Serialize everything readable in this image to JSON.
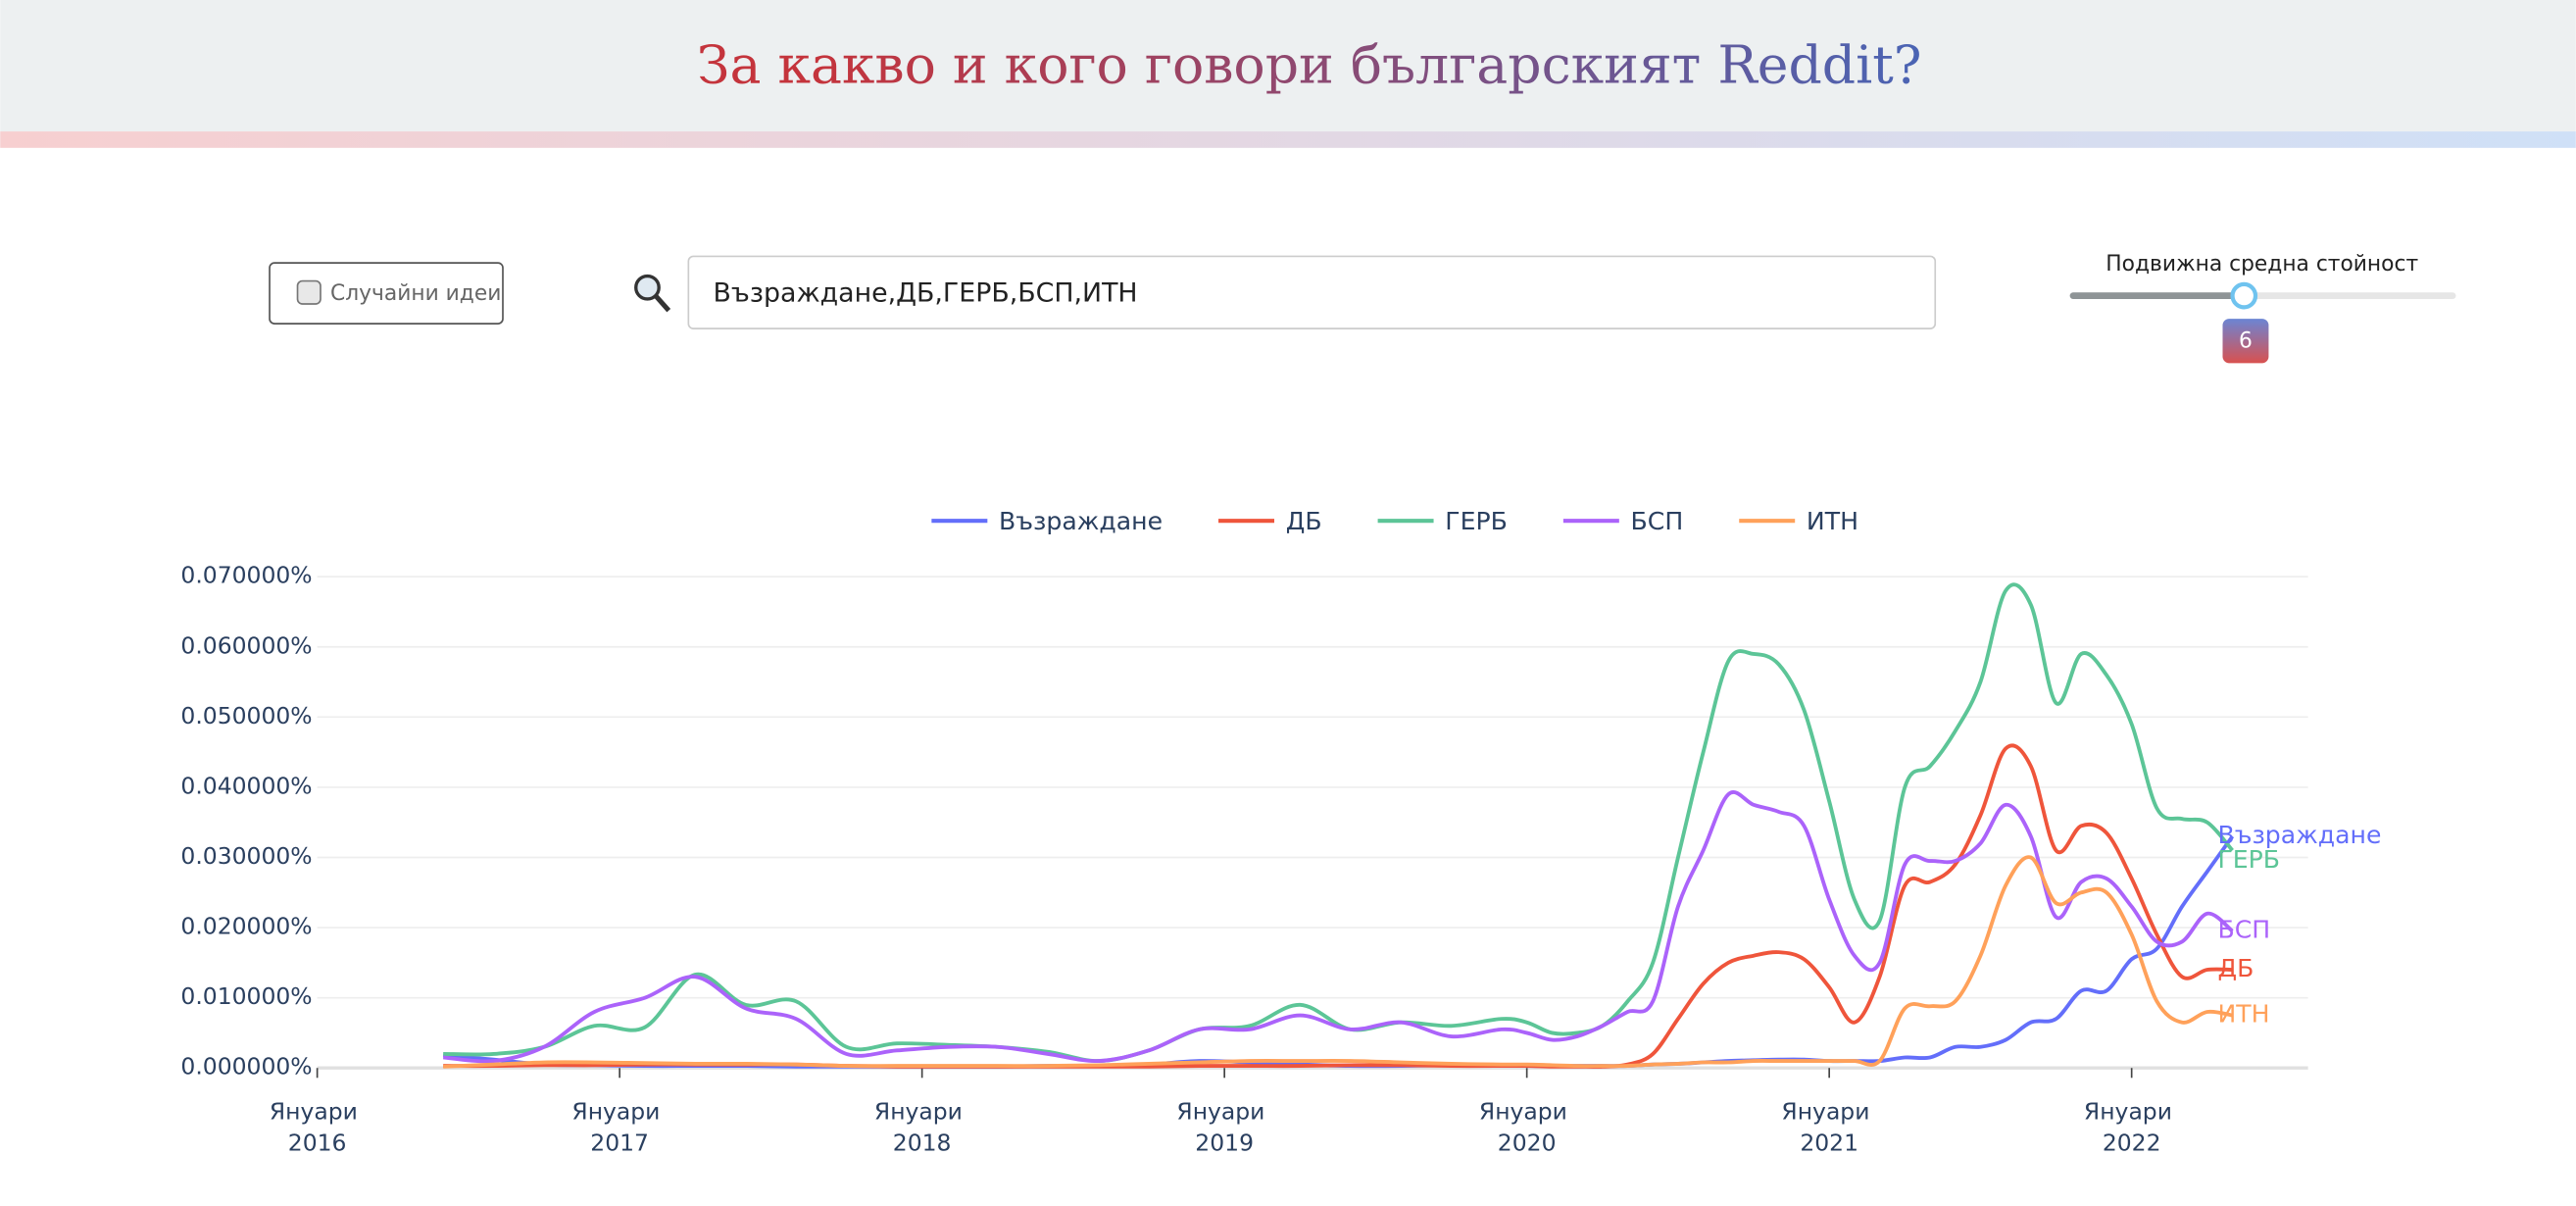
{
  "header": {
    "title": "За какво и кого говори българският Reddit?"
  },
  "controls": {
    "random_button": "Случайни идеи",
    "search_value": "Възраждане,ДБ,ГЕРБ,БСП,ИТН",
    "slider_label": "Подвижна средна стойност",
    "slider_value": 6
  },
  "chart_data": {
    "type": "line",
    "legend": "top",
    "grid": true,
    "x": [
      "2016-06",
      "2016-08",
      "2016-10",
      "2016-12",
      "2017-02",
      "2017-04",
      "2017-06",
      "2017-08",
      "2017-10",
      "2017-12",
      "2018-02",
      "2018-04",
      "2018-06",
      "2018-08",
      "2018-10",
      "2018-12",
      "2019-02",
      "2019-04",
      "2019-06",
      "2019-08",
      "2019-10",
      "2019-12",
      "2020-01",
      "2020-02",
      "2020-03",
      "2020-04",
      "2020-05",
      "2020-06",
      "2020-07",
      "2020-08",
      "2020-09",
      "2020-10",
      "2020-11",
      "2020-12",
      "2021-01",
      "2021-02",
      "2021-03",
      "2021-04",
      "2021-05",
      "2021-06",
      "2021-07",
      "2021-08",
      "2021-09",
      "2021-10",
      "2021-11",
      "2021-12",
      "2022-01",
      "2022-02",
      "2022-03",
      "2022-04",
      "2022-05"
    ],
    "xlim": [
      "2016-01",
      "2022-08"
    ],
    "xticks": [
      {
        "value": "2016-01",
        "label": "Януари 2016"
      },
      {
        "value": "2017-01",
        "label": "Януари 2017"
      },
      {
        "value": "2018-01",
        "label": "Януари 2018"
      },
      {
        "value": "2019-01",
        "label": "Януари 2019"
      },
      {
        "value": "2020-01",
        "label": "Януари 2020"
      },
      {
        "value": "2021-01",
        "label": "Януари 2021"
      },
      {
        "value": "2022-01",
        "label": "Януари 2022"
      }
    ],
    "ylim": [
      0,
      0.07
    ],
    "yticks": [
      {
        "value": 0,
        "label": "0.000000%"
      },
      {
        "value": 0.01,
        "label": "0.010000%"
      },
      {
        "value": 0.02,
        "label": "0.020000%"
      },
      {
        "value": 0.03,
        "label": "0.030000%"
      },
      {
        "value": 0.04,
        "label": "0.040000%"
      },
      {
        "value": 0.05,
        "label": "0.050000%"
      },
      {
        "value": 0.06,
        "label": "0.060000%"
      },
      {
        "value": 0.07,
        "label": "0.070000%"
      }
    ],
    "series": [
      {
        "name": "Възраждане",
        "color": "#636efa",
        "values": [
          0.0018,
          0.0012,
          0.0005,
          0.0004,
          0.0003,
          0.0003,
          0.0003,
          0.0002,
          0.0002,
          0.0002,
          0.0002,
          0.0002,
          0.0003,
          0.0003,
          0.0005,
          0.001,
          0.0008,
          0.0005,
          0.0003,
          0.0003,
          0.0004,
          0.0004,
          0.0003,
          0.0003,
          0.0003,
          0.0003,
          0.0003,
          0.0005,
          0.0006,
          0.0008,
          0.001,
          0.0011,
          0.0012,
          0.0012,
          0.001,
          0.001,
          0.001,
          0.0015,
          0.0015,
          0.003,
          0.003,
          0.004,
          0.0065,
          0.007,
          0.011,
          0.011,
          0.0155,
          0.017,
          0.023,
          0.028,
          0.033
        ]
      },
      {
        "name": "ДБ",
        "color": "#ef553b",
        "values": [
          0.0003,
          0.0003,
          0.0004,
          0.0004,
          0.0005,
          0.0005,
          0.0005,
          0.0005,
          0.0003,
          0.0002,
          0.0002,
          0.0002,
          0.0002,
          0.0002,
          0.0002,
          0.0003,
          0.0003,
          0.0003,
          0.0004,
          0.0004,
          0.0003,
          0.0003,
          0.0003,
          0.0002,
          0.0002,
          0.0002,
          0.0005,
          0.002,
          0.007,
          0.012,
          0.015,
          0.016,
          0.0165,
          0.0155,
          0.0115,
          0.0065,
          0.013,
          0.026,
          0.0265,
          0.029,
          0.036,
          0.0455,
          0.043,
          0.031,
          0.0345,
          0.0335,
          0.027,
          0.019,
          0.013,
          0.014,
          0.014
        ]
      },
      {
        "name": "ГЕРБ",
        "color": "#5cc597",
        "values": [
          0.002,
          0.002,
          0.003,
          0.006,
          0.0058,
          0.0133,
          0.009,
          0.0095,
          0.003,
          0.0035,
          0.0033,
          0.003,
          0.0023,
          0.001,
          0.0025,
          0.0055,
          0.006,
          0.009,
          0.0055,
          0.0065,
          0.006,
          0.007,
          0.0065,
          0.005,
          0.005,
          0.006,
          0.0095,
          0.015,
          0.03,
          0.045,
          0.058,
          0.059,
          0.0575,
          0.051,
          0.038,
          0.024,
          0.021,
          0.04,
          0.043,
          0.048,
          0.055,
          0.068,
          0.066,
          0.052,
          0.059,
          0.056,
          0.049,
          0.037,
          0.0355,
          0.035,
          0.031
        ]
      },
      {
        "name": "БСП",
        "color": "#ab63fa",
        "values": [
          0.0015,
          0.001,
          0.003,
          0.008,
          0.01,
          0.013,
          0.0085,
          0.007,
          0.002,
          0.0025,
          0.003,
          0.003,
          0.002,
          0.001,
          0.0025,
          0.0055,
          0.0055,
          0.0075,
          0.0055,
          0.0065,
          0.0045,
          0.0055,
          0.005,
          0.004,
          0.0045,
          0.006,
          0.008,
          0.0095,
          0.023,
          0.031,
          0.039,
          0.0375,
          0.0365,
          0.0345,
          0.024,
          0.016,
          0.015,
          0.029,
          0.0295,
          0.0295,
          0.032,
          0.0375,
          0.033,
          0.0215,
          0.0265,
          0.027,
          0.023,
          0.018,
          0.018,
          0.022,
          0.0195
        ]
      },
      {
        "name": "ИТН",
        "color": "#ffa15a",
        "values": [
          0.0002,
          0.0005,
          0.0008,
          0.0008,
          0.0007,
          0.0006,
          0.0006,
          0.0005,
          0.0003,
          0.0003,
          0.0003,
          0.0003,
          0.0003,
          0.0004,
          0.0006,
          0.0008,
          0.001,
          0.001,
          0.001,
          0.0008,
          0.0006,
          0.0005,
          0.0005,
          0.0004,
          0.0003,
          0.0003,
          0.0003,
          0.0005,
          0.0006,
          0.0008,
          0.0008,
          0.001,
          0.001,
          0.001,
          0.001,
          0.001,
          0.001,
          0.0085,
          0.0088,
          0.0095,
          0.016,
          0.026,
          0.03,
          0.0235,
          0.025,
          0.025,
          0.019,
          0.0095,
          0.0065,
          0.008,
          0.0075
        ]
      }
    ]
  }
}
